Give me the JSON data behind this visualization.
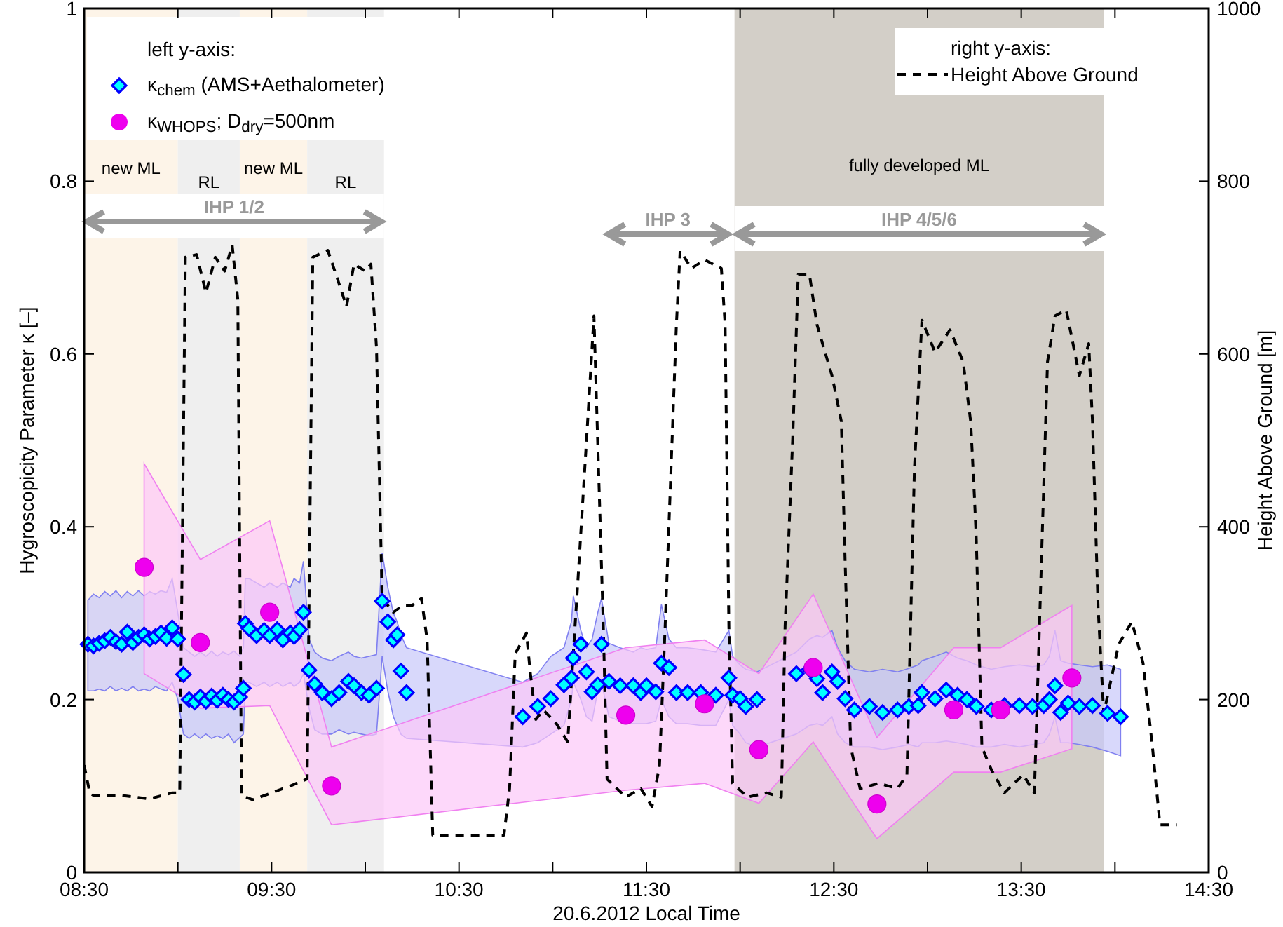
{
  "chart_data": {
    "type": "scatter",
    "xlabel": "20.6.2012 Local Time",
    "ylabel": "Hygroscopicity Parameter κ [–]",
    "y2label": "Height Above Ground [m]",
    "xlim": [
      8.5,
      14.5
    ],
    "xticks": [
      {
        "value": 8.5,
        "label": "08:30"
      },
      {
        "value": 9,
        "label": null
      },
      {
        "value": 9.5,
        "label": "09:30"
      },
      {
        "value": 10,
        "label": null
      },
      {
        "value": 10.5,
        "label": "10:30"
      },
      {
        "value": 11,
        "label": null
      },
      {
        "value": 11.5,
        "label": "11:30"
      },
      {
        "value": 12,
        "label": null
      },
      {
        "value": 12.5,
        "label": "12:30"
      },
      {
        "value": 13,
        "label": null
      },
      {
        "value": 13.5,
        "label": "13:30"
      },
      {
        "value": 14,
        "label": null
      },
      {
        "value": 14.5,
        "label": "14:30"
      }
    ],
    "ylim": [
      0,
      1
    ],
    "yticks": [
      0,
      0.2,
      0.4,
      0.6,
      0.8,
      1
    ],
    "y2lim": [
      0,
      1000
    ],
    "y2ticks": [
      0,
      200,
      400,
      600,
      800,
      1000
    ],
    "legend": "top",
    "grid": false,
    "annotations": [
      "left y-axis:",
      "right y-axis:"
    ],
    "bands": [
      {
        "axis": "x",
        "from": 8.5,
        "to": 9.0,
        "label": "new ML",
        "color": "#fdf4e8"
      },
      {
        "axis": "x",
        "from": 9.0,
        "to": 9.33,
        "label": "RL",
        "color": "#efefef"
      },
      {
        "axis": "x",
        "from": 9.33,
        "to": 9.69,
        "label": "new ML",
        "color": "#fdf4e8"
      },
      {
        "axis": "x",
        "from": 9.69,
        "to": 10.1,
        "label": "RL",
        "color": "#efefef"
      },
      {
        "axis": "x",
        "from": 11.97,
        "to": 13.94,
        "label": "fully developed ML",
        "color": "#d3cfc8"
      },
      {
        "axis": "x",
        "from": 8.5,
        "to": 10.1,
        "label": "IHP 1/2",
        "color": "#ffffff"
      },
      {
        "axis": "x",
        "from": 11.28,
        "to": 11.95,
        "label": "IHP 3",
        "color": "#ffffff"
      },
      {
        "axis": "x",
        "from": 11.97,
        "to": 13.94,
        "label": "IHP 4/5/6",
        "color": "#ffffff"
      }
    ],
    "series": [
      {
        "name": "κ$_{chem}$ (AMS+Aethalometer)",
        "type": "scatter",
        "marker": "diamond",
        "color": "#00ffff",
        "x": [
          8.52,
          8.55,
          8.58,
          8.61,
          8.64,
          8.67,
          8.7,
          8.73,
          8.76,
          8.79,
          8.82,
          8.85,
          8.88,
          8.91,
          8.94,
          8.97,
          9.0,
          9.03,
          9.06,
          9.09,
          9.12,
          9.15,
          9.18,
          9.21,
          9.24,
          9.27,
          9.3,
          9.33,
          9.35,
          9.36,
          9.38,
          9.42,
          9.46,
          9.49,
          9.53,
          9.56,
          9.6,
          9.62,
          9.65,
          9.67,
          9.7,
          9.73,
          9.77,
          9.82,
          9.86,
          9.91,
          9.94,
          9.98,
          10.02,
          10.06,
          10.09,
          10.12,
          10.15,
          10.17,
          10.19,
          10.22,
          10.84,
          10.92,
          10.99,
          11.06,
          11.1,
          11.11,
          11.15,
          11.18,
          11.21,
          11.24,
          11.26,
          11.3,
          11.36,
          11.43,
          11.47,
          11.5,
          11.55,
          11.58,
          11.62,
          11.66,
          11.72,
          11.79,
          11.87,
          11.94,
          11.96,
          12.0,
          12.03,
          12.09,
          12.3,
          12.37,
          12.41,
          12.44,
          12.49,
          12.52,
          12.56,
          12.61,
          12.69,
          12.76,
          12.84,
          12.9,
          12.95,
          12.97,
          13.04,
          13.1,
          13.16,
          13.21,
          13.26,
          13.34,
          13.41,
          13.49,
          13.56,
          13.62,
          13.65,
          13.68,
          13.71,
          13.75,
          13.81,
          13.88,
          13.96,
          14.03
        ],
        "values": [
          0.264,
          0.262,
          0.265,
          0.268,
          0.272,
          0.267,
          0.264,
          0.278,
          0.266,
          0.272,
          0.275,
          0.27,
          0.273,
          0.277,
          0.271,
          0.283,
          0.27,
          0.229,
          0.2,
          0.197,
          0.203,
          0.198,
          0.204,
          0.199,
          0.205,
          0.2,
          0.197,
          0.203,
          0.213,
          0.288,
          0.282,
          0.274,
          0.28,
          0.274,
          0.281,
          0.269,
          0.277,
          0.273,
          0.281,
          0.301,
          0.234,
          0.218,
          0.208,
          0.201,
          0.208,
          0.221,
          0.216,
          0.208,
          0.205,
          0.213,
          0.314,
          0.29,
          0.269,
          0.275,
          0.233,
          0.208,
          0.18,
          0.192,
          0.201,
          0.217,
          0.225,
          0.248,
          0.264,
          0.232,
          0.209,
          0.217,
          0.264,
          0.221,
          0.216,
          0.216,
          0.208,
          0.216,
          0.209,
          0.242,
          0.237,
          0.208,
          0.208,
          0.208,
          0.205,
          0.225,
          0.205,
          0.201,
          0.192,
          0.2,
          0.23,
          0.235,
          0.224,
          0.208,
          0.232,
          0.221,
          0.201,
          0.188,
          0.192,
          0.185,
          0.188,
          0.192,
          0.193,
          0.208,
          0.201,
          0.211,
          0.205,
          0.2,
          0.192,
          0.188,
          0.193,
          0.193,
          0.192,
          0.193,
          0.2,
          0.216,
          0.185,
          0.196,
          0.192,
          0.193,
          0.184,
          0.18
        ],
        "lower": [
          0.21,
          0.21,
          0.212,
          0.21,
          0.215,
          0.21,
          0.213,
          0.21,
          0.215,
          0.21,
          0.212,
          0.21,
          0.215,
          0.212,
          0.21,
          0.22,
          0.2,
          0.16,
          0.155,
          0.16,
          0.155,
          0.16,
          0.155,
          0.158,
          0.155,
          0.16,
          0.15,
          0.156,
          0.16,
          0.22,
          0.22,
          0.215,
          0.22,
          0.215,
          0.22,
          0.215,
          0.22,
          0.215,
          0.22,
          0.23,
          0.19,
          0.165,
          0.16,
          0.16,
          0.165,
          0.16,
          0.162,
          0.16,
          0.158,
          0.16,
          0.25,
          0.21,
          0.18,
          0.17,
          0.16,
          0.155,
          0.145,
          0.15,
          0.16,
          0.17,
          0.2,
          0.22,
          0.2,
          0.18,
          0.175,
          0.21,
          0.22,
          0.18,
          0.175,
          0.172,
          0.172,
          0.172,
          0.175,
          0.2,
          0.18,
          0.172,
          0.172,
          0.17,
          0.17,
          0.2,
          0.17,
          0.16,
          0.15,
          0.145,
          0.16,
          0.17,
          0.172,
          0.17,
          0.18,
          0.16,
          0.15,
          0.145,
          0.145,
          0.142,
          0.145,
          0.148,
          0.145,
          0.15,
          0.15,
          0.152,
          0.15,
          0.148,
          0.145,
          0.145,
          0.148,
          0.145,
          0.148,
          0.15,
          0.16,
          0.18,
          0.15,
          0.15,
          0.148,
          0.145,
          0.14,
          0.135
        ],
        "upper": [
          0.315,
          0.322,
          0.318,
          0.325,
          0.32,
          0.326,
          0.318,
          0.325,
          0.32,
          0.326,
          0.32,
          0.325,
          0.322,
          0.326,
          0.324,
          0.34,
          0.3,
          0.26,
          0.255,
          0.25,
          0.255,
          0.25,
          0.256,
          0.25,
          0.255,
          0.252,
          0.256,
          0.25,
          0.26,
          0.34,
          0.34,
          0.335,
          0.33,
          0.335,
          0.33,
          0.335,
          0.33,
          0.34,
          0.335,
          0.36,
          0.27,
          0.255,
          0.248,
          0.245,
          0.25,
          0.255,
          0.25,
          0.248,
          0.25,
          0.252,
          0.37,
          0.33,
          0.3,
          0.29,
          0.275,
          0.26,
          0.22,
          0.23,
          0.25,
          0.26,
          0.29,
          0.32,
          0.28,
          0.26,
          0.27,
          0.3,
          0.317,
          0.265,
          0.26,
          0.255,
          0.26,
          0.258,
          0.26,
          0.31,
          0.27,
          0.26,
          0.26,
          0.258,
          0.255,
          0.28,
          0.25,
          0.24,
          0.235,
          0.232,
          0.255,
          0.27,
          0.274,
          0.272,
          0.28,
          0.26,
          0.245,
          0.235,
          0.232,
          0.235,
          0.232,
          0.236,
          0.24,
          0.245,
          0.25,
          0.255,
          0.248,
          0.245,
          0.24,
          0.235,
          0.238,
          0.24,
          0.238,
          0.24,
          0.25,
          0.28,
          0.245,
          0.242,
          0.24,
          0.238,
          0.24,
          0.235
        ]
      },
      {
        "name": "κ$_{WHOPS}$; D$_{dry}$=500nm",
        "type": "scatter",
        "marker": "circle",
        "color": "#ee00ee",
        "x": [
          8.82,
          9.12,
          9.49,
          9.82,
          11.39,
          11.81,
          12.1,
          12.39,
          12.73,
          13.14,
          13.39,
          13.77
        ],
        "values": [
          0.353,
          0.266,
          0.301,
          0.1,
          0.182,
          0.195,
          0.142,
          0.237,
          0.079,
          0.188,
          0.188,
          0.225
        ],
        "lower": [
          0.23,
          0.19,
          0.193,
          0.055,
          0.095,
          0.103,
          0.08,
          0.151,
          0.039,
          0.116,
          0.116,
          0.143
        ],
        "upper": [
          0.473,
          0.362,
          0.407,
          0.145,
          0.26,
          0.269,
          0.23,
          0.322,
          0.156,
          0.26,
          0.26,
          0.309
        ]
      },
      {
        "name": "Height Above Ground",
        "type": "line",
        "axis": "y2",
        "marker": "none",
        "line_style": "dashed",
        "color": "#000000",
        "x": [
          8.5,
          8.53,
          8.55,
          8.7,
          8.85,
          8.97,
          9.01,
          9.04,
          9.1,
          9.15,
          9.2,
          9.25,
          9.29,
          9.32,
          9.34,
          9.4,
          9.5,
          9.6,
          9.69,
          9.72,
          9.8,
          9.85,
          9.9,
          9.94,
          10.0,
          10.03,
          10.06,
          10.09,
          10.15,
          10.2,
          10.25,
          10.3,
          10.33,
          10.36,
          10.5,
          10.65,
          10.74,
          10.77,
          10.8,
          10.86,
          10.88,
          10.91,
          10.95,
          11.02,
          11.08,
          11.13,
          11.18,
          11.22,
          11.24,
          11.27,
          11.29,
          11.39,
          11.47,
          11.53,
          11.57,
          11.6,
          11.66,
          11.68,
          11.74,
          11.81,
          11.9,
          11.92,
          11.94,
          11.96,
          12.04,
          12.14,
          12.22,
          12.24,
          12.28,
          12.31,
          12.37,
          12.41,
          12.49,
          12.54,
          12.56,
          12.59,
          12.64,
          12.74,
          12.84,
          12.89,
          12.93,
          12.97,
          13.04,
          13.12,
          13.19,
          13.23,
          13.25,
          13.26,
          13.29,
          13.34,
          13.41,
          13.51,
          13.57,
          13.6,
          13.64,
          13.68,
          13.74,
          13.81,
          13.86,
          13.88,
          13.91,
          13.94,
          14.02,
          14.09,
          14.15,
          14.2,
          14.24,
          14.33
        ],
        "values": [
          124,
          92,
          89,
          89,
          85,
          92,
          92,
          712,
          715,
          671,
          712,
          696,
          726,
          663,
          89,
          84,
          92,
          100,
          108,
          712,
          720,
          688,
          655,
          704,
          696,
          704,
          607,
          317,
          301,
          309,
          309,
          317,
          269,
          43,
          43,
          43,
          43,
          97,
          253,
          277,
          232,
          177,
          188,
          172,
          151,
          322,
          499,
          644,
          499,
          285,
          108,
          87,
          97,
          76,
          124,
          285,
          634,
          720,
          699,
          709,
          699,
          634,
          285,
          103,
          87,
          92,
          87,
          285,
          499,
          692,
          692,
          634,
          575,
          522,
          361,
          145,
          97,
          103,
          97,
          113,
          467,
          639,
          602,
          628,
          591,
          522,
          435,
          386,
          145,
          119,
          92,
          113,
          92,
          306,
          591,
          644,
          651,
          575,
          612,
          522,
          306,
          184,
          264,
          290,
          242,
          145,
          55,
          55
        ]
      }
    ]
  }
}
